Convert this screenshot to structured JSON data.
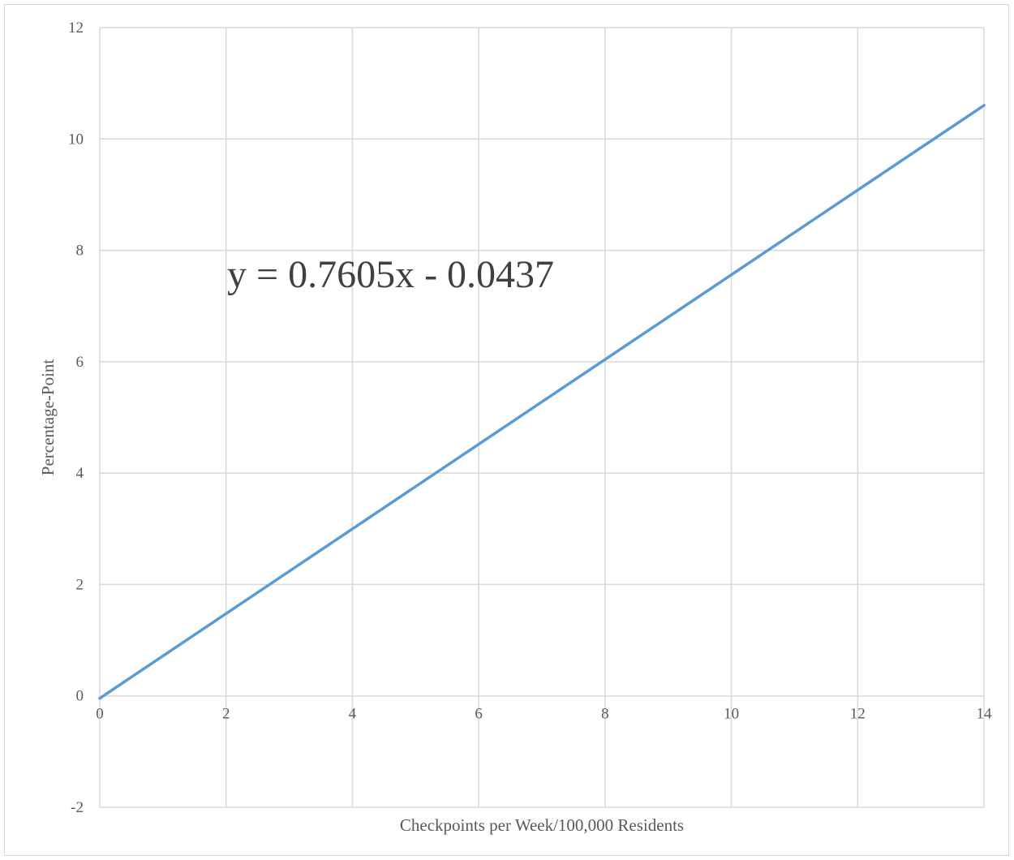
{
  "chart_data": {
    "type": "line",
    "title": "",
    "xlabel": "Checkpoints per Week/100,000 Residents",
    "ylabel": "Percentage-Point",
    "xlim": [
      0,
      14
    ],
    "ylim": [
      -2,
      12
    ],
    "x_ticks": [
      "0",
      "2",
      "4",
      "6",
      "8",
      "10",
      "12",
      "14"
    ],
    "y_ticks": [
      "-2",
      "0",
      "2",
      "4",
      "6",
      "8",
      "10",
      "12"
    ],
    "grid": true,
    "legend": "none",
    "annotation": "y = 0.7605x - 0.0437",
    "series": [
      {
        "x": [
          0,
          14
        ],
        "y": [
          -0.0437,
          10.6033
        ],
        "color": "#5b9bd5"
      }
    ]
  }
}
